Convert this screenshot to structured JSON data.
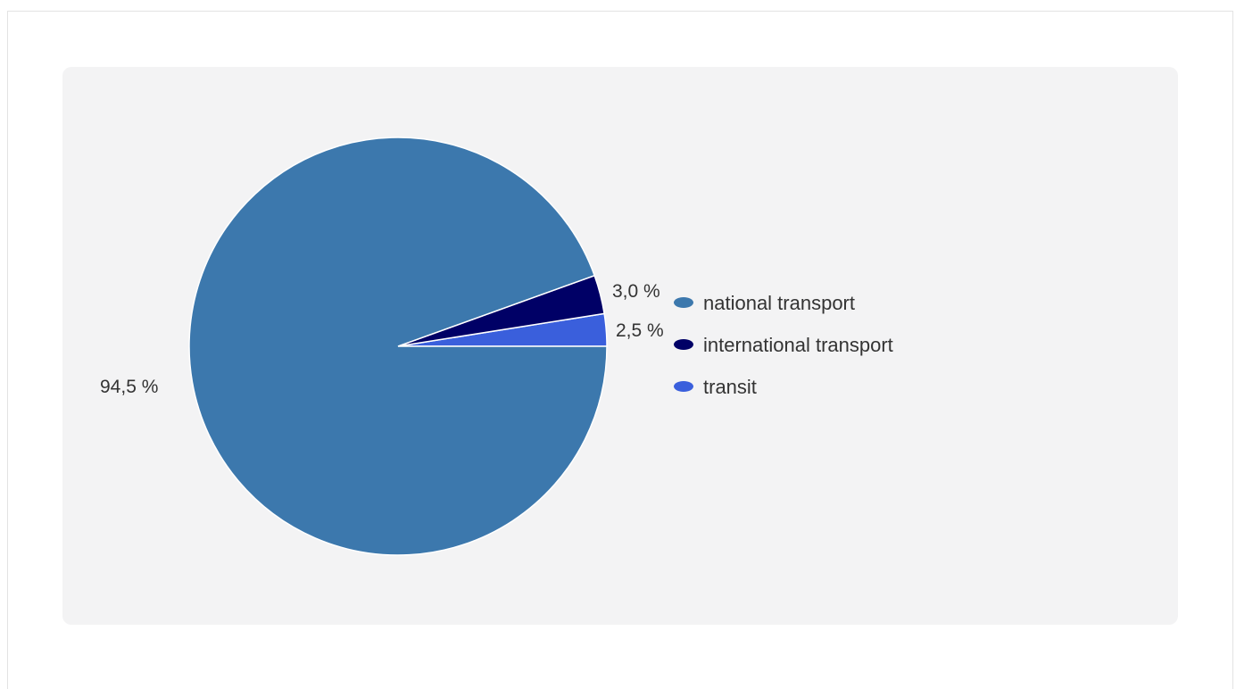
{
  "chart_data": {
    "type": "pie",
    "categories": [
      "national transport",
      "international transport",
      "transit"
    ],
    "values": [
      94.5,
      3.0,
      2.5
    ],
    "data_labels": [
      "94,5 %",
      "3,0 %",
      "2,5 %"
    ],
    "colors": [
      "#3c78ad",
      "#000066",
      "#3a5fdc"
    ],
    "legend_position": "right",
    "title": ""
  }
}
